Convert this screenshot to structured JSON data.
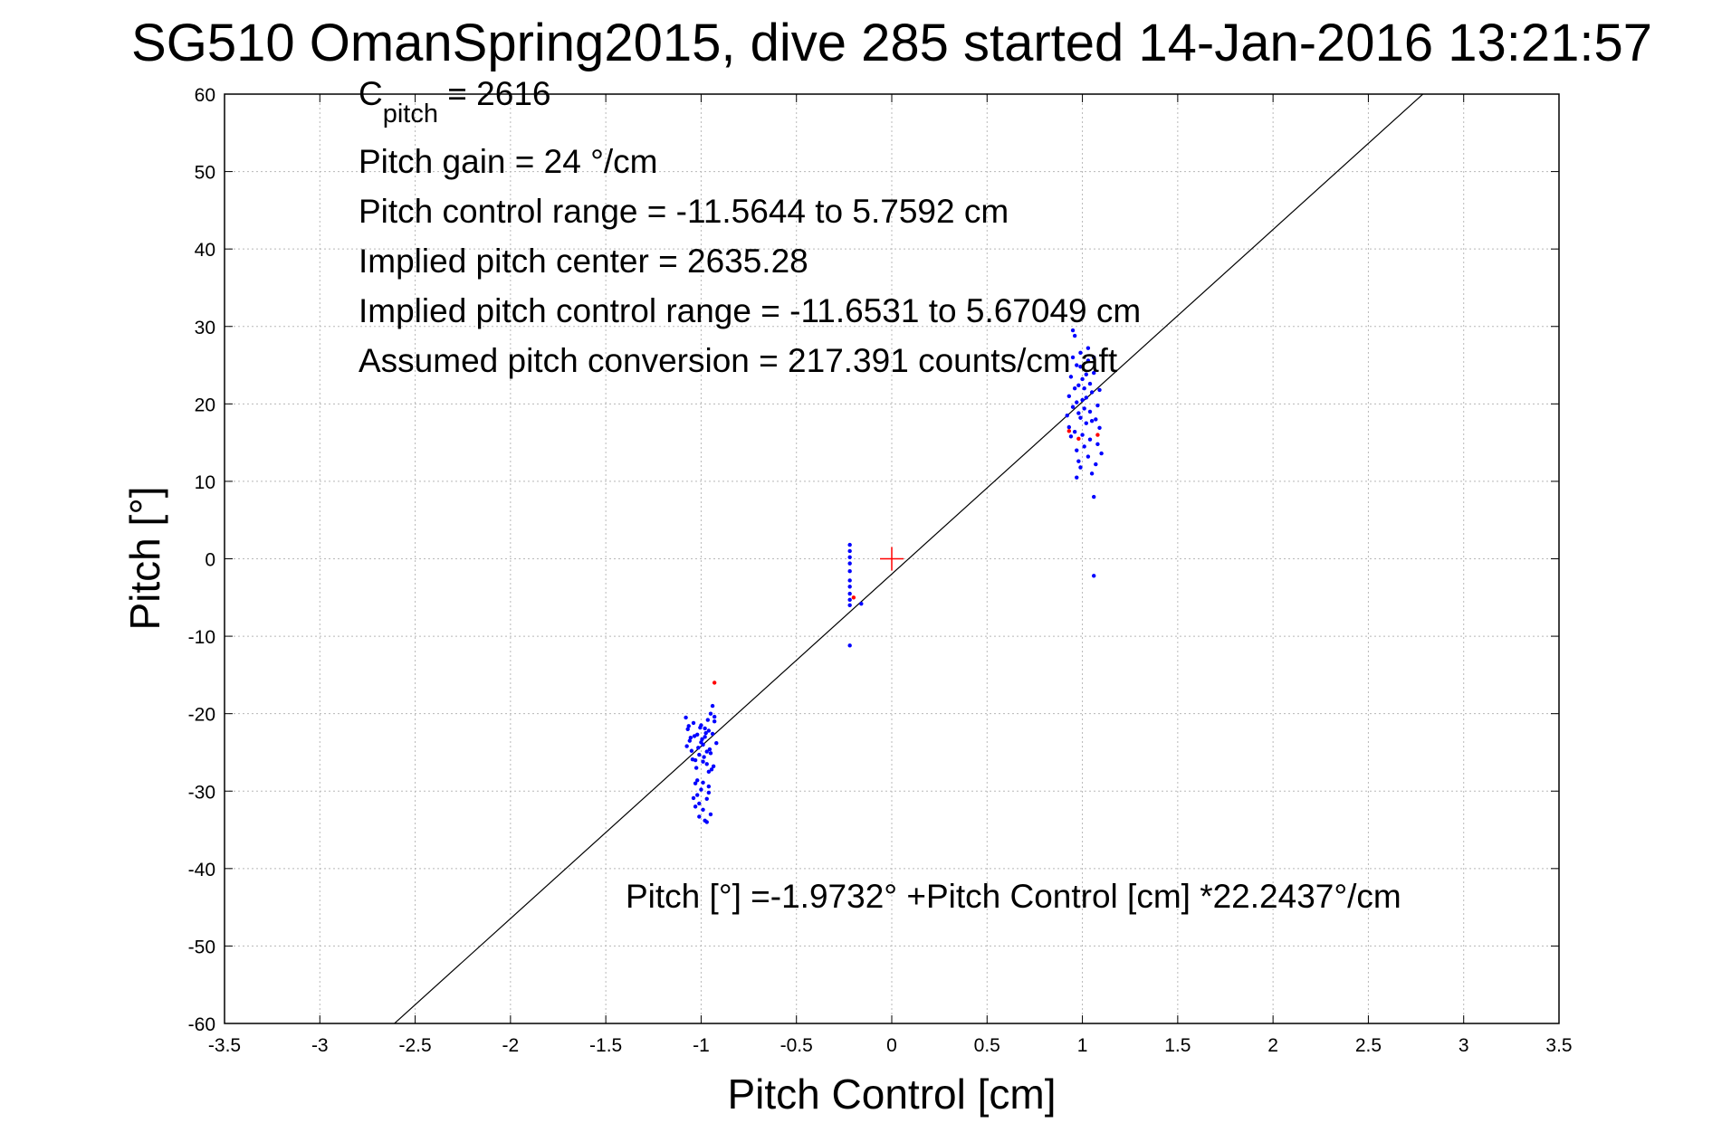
{
  "chart_data": {
    "type": "scatter",
    "title": "SG510 OmanSpring2015, dive 285 started 14-Jan-2016 13:21:57",
    "xlabel": "Pitch Control [cm]",
    "ylabel": "Pitch [°]",
    "xlim": [
      -3.5,
      3.5
    ],
    "ylim": [
      -60,
      60
    ],
    "xticks": [
      -3.5,
      -3,
      -2.5,
      -2,
      -1.5,
      -1,
      -0.5,
      0,
      0.5,
      1,
      1.5,
      2,
      2.5,
      3,
      3.5
    ],
    "xtick_labels": [
      "-3.5",
      "-3",
      "-2.5",
      "-2",
      "-1.5",
      "-1",
      "-0.5",
      "0",
      "0.5",
      "1",
      "1.5",
      "2",
      "2.5",
      "3",
      "3.5"
    ],
    "yticks": [
      -60,
      -50,
      -40,
      -30,
      -20,
      -10,
      0,
      10,
      20,
      30,
      40,
      50,
      60
    ],
    "ytick_labels": [
      "-60",
      "-50",
      "-40",
      "-30",
      "-20",
      "-10",
      "0",
      "10",
      "20",
      "30",
      "40",
      "50",
      "60"
    ],
    "grid": true,
    "annotations": {
      "c_pitch_prefix": "C",
      "c_pitch_sub": "pitch",
      "c_pitch_value": " = 2616",
      "pitch_gain": "Pitch gain = 24 °/cm",
      "control_range": "Pitch control range = -11.5644 to 5.7592 cm",
      "implied_center": "Implied pitch center = 2635.28",
      "implied_range": "Implied pitch control range = -11.6531 to 5.67049 cm",
      "conversion": "Assumed pitch conversion = 217.391 counts/cm aft",
      "fit_equation": "Pitch [°] =-1.9732° +Pitch Control [cm] *22.2437°/cm"
    },
    "fit_line": {
      "intercept": -1.9732,
      "slope": 22.2437,
      "color": "#000000"
    },
    "center_marker": {
      "x": 0,
      "y": 0,
      "color": "#ff0000"
    },
    "series": [
      {
        "color": "#0000ff",
        "points": [
          [
            -1.08,
            -20.5
          ],
          [
            -1.07,
            -22.0
          ],
          [
            -1.06,
            -23.5
          ],
          [
            -1.05,
            -24.8
          ],
          [
            -1.04,
            -21.2
          ],
          [
            -1.03,
            -26.0
          ],
          [
            -1.02,
            -22.7
          ],
          [
            -1.01,
            -25.3
          ],
          [
            -1.0,
            -21.5
          ],
          [
            -0.99,
            -24.0
          ],
          [
            -0.98,
            -23.0
          ],
          [
            -0.97,
            -26.5
          ],
          [
            -0.96,
            -22.2
          ],
          [
            -0.95,
            -20.0
          ],
          [
            -0.94,
            -19.0
          ],
          [
            -0.93,
            -21.0
          ],
          [
            -0.92,
            -23.8
          ],
          [
            -0.935,
            -26.8
          ],
          [
            -0.945,
            -27.2
          ],
          [
            -0.955,
            -24.6
          ],
          [
            -0.965,
            -20.8
          ],
          [
            -0.975,
            -22.5
          ],
          [
            -0.985,
            -25.6
          ],
          [
            -0.995,
            -23.3
          ],
          [
            -1.005,
            -21.8
          ],
          [
            -1.015,
            -24.4
          ],
          [
            -1.025,
            -27.0
          ],
          [
            -1.035,
            -22.9
          ],
          [
            -1.045,
            -25.9
          ],
          [
            -1.055,
            -23.1
          ],
          [
            -1.065,
            -21.6
          ],
          [
            -1.075,
            -24.2
          ],
          [
            -0.93,
            -20.4
          ],
          [
            -0.94,
            -22.6
          ],
          [
            -0.95,
            -25.1
          ],
          [
            -0.96,
            -27.5
          ],
          [
            -0.97,
            -24.9
          ],
          [
            -0.98,
            -21.9
          ],
          [
            -0.99,
            -26.2
          ],
          [
            -1.0,
            -23.7
          ],
          [
            -1.03,
            -29.0
          ],
          [
            -1.02,
            -30.5
          ],
          [
            -1.01,
            -31.6
          ],
          [
            -1.0,
            -29.8
          ],
          [
            -0.99,
            -32.4
          ],
          [
            -1.04,
            -30.9
          ],
          [
            -1.02,
            -28.6
          ],
          [
            -0.97,
            -31.0
          ],
          [
            -0.96,
            -30.2
          ],
          [
            -0.95,
            -33.0
          ],
          [
            -0.98,
            -33.8
          ],
          [
            -0.97,
            -34.0
          ],
          [
            -0.99,
            -28.9
          ],
          [
            -1.01,
            -33.3
          ],
          [
            -1.03,
            -32.0
          ],
          [
            -0.96,
            -29.4
          ],
          [
            -0.22,
            1.8
          ],
          [
            -0.22,
            1.0
          ],
          [
            -0.22,
            0.2
          ],
          [
            -0.22,
            -0.6
          ],
          [
            -0.22,
            -1.6
          ],
          [
            -0.22,
            -2.8
          ],
          [
            -0.22,
            -3.6
          ],
          [
            -0.22,
            -4.5
          ],
          [
            -0.22,
            -5.3
          ],
          [
            -0.22,
            -6.0
          ],
          [
            -0.16,
            -5.8
          ],
          [
            -0.22,
            -11.2
          ],
          [
            0.93,
            21.0
          ],
          [
            0.94,
            23.5
          ],
          [
            0.95,
            26.0
          ],
          [
            0.96,
            28.8
          ],
          [
            0.95,
            29.5
          ],
          [
            0.97,
            25.0
          ],
          [
            0.98,
            22.4
          ],
          [
            0.99,
            24.8
          ],
          [
            1.0,
            20.5
          ],
          [
            1.01,
            22.0
          ],
          [
            1.02,
            23.8
          ],
          [
            1.03,
            25.6
          ],
          [
            1.04,
            19.0
          ],
          [
            1.05,
            21.5
          ],
          [
            1.06,
            24.0
          ],
          [
            1.07,
            18.0
          ],
          [
            0.92,
            18.5
          ],
          [
            0.93,
            17.0
          ],
          [
            0.94,
            15.8
          ],
          [
            0.95,
            19.6
          ],
          [
            0.96,
            16.4
          ],
          [
            0.97,
            14.0
          ],
          [
            0.98,
            12.6
          ],
          [
            0.99,
            18.2
          ],
          [
            1.0,
            16.0
          ],
          [
            1.01,
            14.5
          ],
          [
            1.02,
            17.5
          ],
          [
            1.03,
            13.2
          ],
          [
            1.04,
            15.4
          ],
          [
            1.05,
            11.0
          ],
          [
            1.06,
            8.0
          ],
          [
            1.07,
            12.2
          ],
          [
            1.08,
            14.8
          ],
          [
            1.09,
            16.9
          ],
          [
            1.1,
            13.6
          ],
          [
            1.08,
            19.8
          ],
          [
            1.09,
            21.8
          ],
          [
            1.06,
            26.0
          ],
          [
            1.03,
            27.2
          ],
          [
            0.99,
            26.6
          ],
          [
            0.96,
            22.0
          ],
          [
            0.97,
            20.2
          ],
          [
            0.98,
            18.8
          ],
          [
            1.0,
            23.2
          ],
          [
            1.02,
            20.8
          ],
          [
            1.04,
            22.6
          ],
          [
            1.05,
            17.8
          ],
          [
            1.01,
            19.4
          ],
          [
            0.97,
            10.5
          ],
          [
            0.99,
            11.8
          ],
          [
            1.06,
            -2.2
          ]
        ]
      },
      {
        "color": "#ff0000",
        "points": [
          [
            -0.93,
            -16.0
          ],
          [
            -0.2,
            -5.0
          ],
          [
            0.98,
            15.5
          ],
          [
            0.93,
            16.5
          ],
          [
            1.08,
            16.0
          ]
        ]
      }
    ]
  }
}
